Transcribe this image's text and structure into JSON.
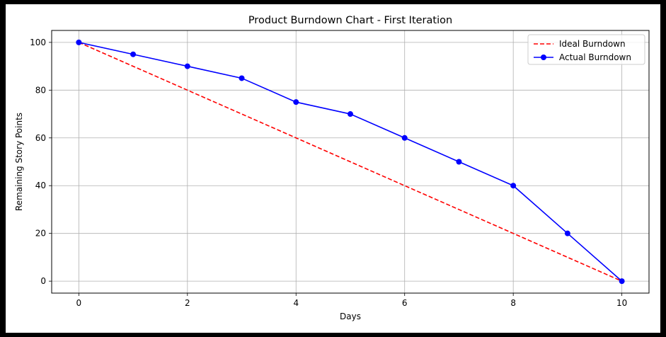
{
  "chart_data": {
    "type": "line",
    "title": "Product Burndown Chart - First Iteration",
    "xlabel": "Days",
    "ylabel": "Remaining Story Points",
    "xlim": [
      -0.5,
      10.5
    ],
    "ylim": [
      -5,
      105
    ],
    "xticks": [
      0,
      2,
      4,
      6,
      8,
      10
    ],
    "yticks": [
      0,
      20,
      40,
      60,
      80,
      100
    ],
    "grid": true,
    "legend_position": "top-right",
    "x": [
      0,
      1,
      2,
      3,
      4,
      5,
      6,
      7,
      8,
      9,
      10
    ],
    "series": [
      {
        "name": "Ideal Burndown",
        "style": "dashed",
        "marker": "none",
        "color": "#ff0000",
        "values": [
          100,
          90,
          80,
          70,
          60,
          50,
          40,
          30,
          20,
          10,
          0
        ]
      },
      {
        "name": "Actual Burndown",
        "style": "solid",
        "marker": "circle",
        "color": "#0000ff",
        "values": [
          100,
          95,
          90,
          85,
          75,
          70,
          60,
          50,
          40,
          20,
          0
        ]
      }
    ]
  }
}
